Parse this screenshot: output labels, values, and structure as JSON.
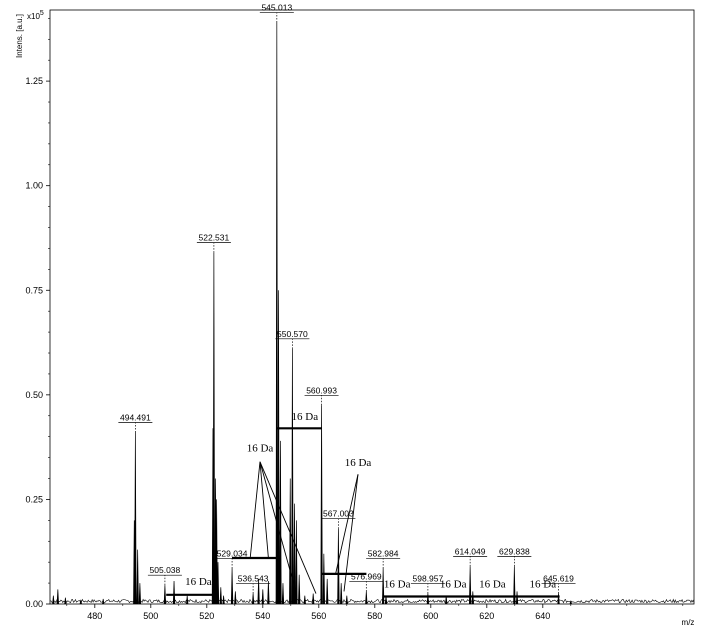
{
  "chart_data": {
    "type": "line",
    "title": "",
    "xlabel": "m/z",
    "ylabel": "Intens. [a.u.]",
    "y_multiplier": "x10",
    "y_multiplier_exp": "5",
    "xlim": [
      464,
      694
    ],
    "ylim": [
      0,
      1.42
    ],
    "x_ticks": [
      480,
      500,
      520,
      540,
      560,
      580,
      600,
      620,
      640
    ],
    "y_ticks": [
      {
        "value": 0.0,
        "label": "0.00"
      },
      {
        "value": 0.25,
        "label": "0.25"
      },
      {
        "value": 0.5,
        "label": "0.50"
      },
      {
        "value": 0.75,
        "label": "0.75"
      },
      {
        "value": 1.0,
        "label": "1.00"
      },
      {
        "value": 1.25,
        "label": "1.25"
      }
    ],
    "peaks": [
      {
        "x": 465.2,
        "y": 0.02
      },
      {
        "x": 466.8,
        "y": 0.035
      },
      {
        "x": 469.5,
        "y": 0.015
      },
      {
        "x": 475.0,
        "y": 0.01
      },
      {
        "x": 483.0,
        "y": 0.012
      },
      {
        "x": 494.49,
        "y": 0.41,
        "label": "494.491"
      },
      {
        "x": 494.1,
        "y": 0.2
      },
      {
        "x": 495.3,
        "y": 0.13
      },
      {
        "x": 496.1,
        "y": 0.05
      },
      {
        "x": 505.04,
        "y": 0.045,
        "label": "505.038"
      },
      {
        "x": 508.3,
        "y": 0.055
      },
      {
        "x": 513.0,
        "y": 0.02
      },
      {
        "x": 522.2,
        "y": 0.42
      },
      {
        "x": 522.53,
        "y": 0.84,
        "label": "522.531"
      },
      {
        "x": 523.1,
        "y": 0.3
      },
      {
        "x": 523.5,
        "y": 0.25
      },
      {
        "x": 524.0,
        "y": 0.1
      },
      {
        "x": 525.0,
        "y": 0.04
      },
      {
        "x": 526.0,
        "y": 0.02
      },
      {
        "x": 529.03,
        "y": 0.085,
        "label": "529.034"
      },
      {
        "x": 530.2,
        "y": 0.03
      },
      {
        "x": 536.54,
        "y": 0.025,
        "label": "536.543"
      },
      {
        "x": 538.5,
        "y": 0.06
      },
      {
        "x": 540.0,
        "y": 0.035
      },
      {
        "x": 542.0,
        "y": 0.055
      },
      {
        "x": 545.01,
        "y": 1.39,
        "label": "545.013"
      },
      {
        "x": 545.6,
        "y": 0.75
      },
      {
        "x": 546.3,
        "y": 0.39
      },
      {
        "x": 547.2,
        "y": 0.05
      },
      {
        "x": 549.8,
        "y": 0.3
      },
      {
        "x": 550.57,
        "y": 0.61,
        "label": "550.570"
      },
      {
        "x": 551.3,
        "y": 0.24
      },
      {
        "x": 552.0,
        "y": 0.2
      },
      {
        "x": 553.0,
        "y": 0.07
      },
      {
        "x": 555.0,
        "y": 0.02
      },
      {
        "x": 558.0,
        "y": 0.025
      },
      {
        "x": 560.99,
        "y": 0.475,
        "label": "560.993"
      },
      {
        "x": 561.8,
        "y": 0.12
      },
      {
        "x": 563.0,
        "y": 0.06
      },
      {
        "x": 567.0,
        "y": 0.18,
        "label": "567.003"
      },
      {
        "x": 568.0,
        "y": 0.05
      },
      {
        "x": 570.0,
        "y": 0.02
      },
      {
        "x": 576.97,
        "y": 0.03,
        "label": "576.969"
      },
      {
        "x": 582.98,
        "y": 0.085,
        "label": "582.984"
      },
      {
        "x": 584.0,
        "y": 0.02
      },
      {
        "x": 598.96,
        "y": 0.025,
        "label": "598.957"
      },
      {
        "x": 605.5,
        "y": 0.02
      },
      {
        "x": 614.05,
        "y": 0.09,
        "label": "614.049"
      },
      {
        "x": 615.0,
        "y": 0.03
      },
      {
        "x": 629.84,
        "y": 0.09,
        "label": "629.838"
      },
      {
        "x": 630.8,
        "y": 0.03
      },
      {
        "x": 645.62,
        "y": 0.025,
        "label": "645.619"
      },
      {
        "x": 650.0,
        "y": 0.008
      }
    ],
    "annotations": [
      {
        "text": "16 Da",
        "text_x": 517,
        "text_y": 0.045,
        "bar": [
          505.5,
          522.5
        ],
        "bar_y": 0.022
      },
      {
        "text": "16 Da",
        "text_x": 539,
        "text_y": 0.365,
        "bar": [
          529.0,
          545.0
        ],
        "bar_y": 0.11
      },
      {
        "text": "16 Da",
        "text_x": 555,
        "text_y": 0.44,
        "bar": [
          545.0,
          561.0
        ],
        "bar_y": 0.42
      },
      {
        "text": "16 Da",
        "text_x": 574,
        "text_y": 0.33,
        "bar": [
          561.0,
          577.0
        ],
        "bar_y": 0.072
      },
      {
        "text": "16 Da",
        "text_x": 588,
        "text_y": 0.04,
        "bar": [
          583.0,
          599.0
        ],
        "bar_y": 0.018
      },
      {
        "text": "16 Da",
        "text_x": 608,
        "text_y": 0.04,
        "bar": [
          599.0,
          614.0
        ],
        "bar_y": 0.018
      },
      {
        "text": "16 Da",
        "text_x": 622,
        "text_y": 0.04,
        "bar": [
          614.0,
          630.0
        ],
        "bar_y": 0.018
      },
      {
        "text": "16 Da",
        "text_x": 640,
        "text_y": 0.04,
        "bar": [
          630.0,
          646.0
        ],
        "bar_y": 0.018
      }
    ],
    "pointers": [
      {
        "from_x": 539,
        "from_y": 0.34,
        "to_x": 535.5,
        "to_y": 0.11
      },
      {
        "from_x": 539,
        "from_y": 0.34,
        "to_x": 542.0,
        "to_y": 0.11
      },
      {
        "from_x": 539,
        "from_y": 0.34,
        "to_x": 552.0,
        "to_y": 0.025
      },
      {
        "from_x": 539,
        "from_y": 0.34,
        "to_x": 559.0,
        "to_y": 0.025
      },
      {
        "from_x": 574,
        "from_y": 0.31,
        "to_x": 566.0,
        "to_y": 0.072
      },
      {
        "from_x": 574,
        "from_y": 0.31,
        "to_x": 569.0,
        "to_y": 0.03
      }
    ]
  }
}
